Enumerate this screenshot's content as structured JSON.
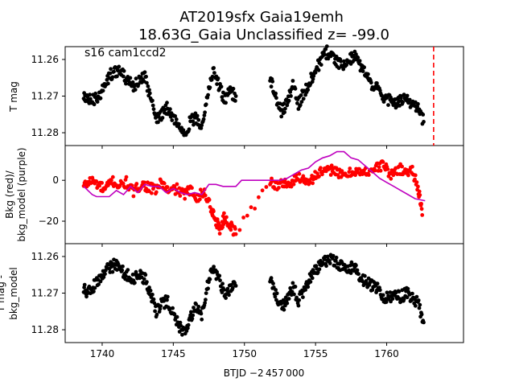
{
  "title_line1": "AT2019sfx  Gaia19emh",
  "title_line2": "18.63G_Gaia Unclassified z= -99.0",
  "annotation": "s16 cam1ccd2",
  "xlabel": "BTJD −2 457 000",
  "colors": {
    "data": "#000000",
    "bkg": "#ff0000",
    "bkg_model": "#bf00bf",
    "marker_line": "#ff0000"
  },
  "chart_data": [
    {
      "type": "scatter",
      "panel": "top",
      "ylabel": "T mag",
      "xlim": [
        1737.4,
        1765.4
      ],
      "ylim": [
        11.2835,
        11.2565
      ],
      "inverted_y": true,
      "xticks": [
        1740,
        1745,
        1750,
        1755,
        1760
      ],
      "yticks": [
        11.26,
        11.27,
        11.28
      ],
      "ytick_labels": [
        "11.26",
        "11.27",
        "11.28"
      ],
      "vline_x": 1763.3,
      "segments": [
        {
          "x": [
            1738.7,
            1739.0,
            1739.4,
            1739.8,
            1740.2,
            1740.6,
            1741.0,
            1741.4,
            1741.8,
            1742.2,
            1742.6,
            1743.0,
            1743.4,
            1743.8,
            1744.2,
            1744.6,
            1745.0,
            1745.4,
            1745.8,
            1746.2,
            1746.6,
            1747.0,
            1747.4,
            1747.8,
            1748.2,
            1748.6,
            1749.0,
            1749.4
          ],
          "y": [
            11.27,
            11.271,
            11.271,
            11.27,
            11.267,
            11.264,
            11.263,
            11.264,
            11.266,
            11.267,
            11.266,
            11.265,
            11.27,
            11.276,
            11.275,
            11.273,
            11.276,
            11.278,
            11.28,
            11.277,
            11.276,
            11.278,
            11.27,
            11.263,
            11.267,
            11.271,
            11.269,
            11.27
          ]
        },
        {
          "x": [
            1751.8,
            1752.2,
            1752.6,
            1753.0,
            1753.4,
            1753.8,
            1754.2,
            1754.6,
            1755.0,
            1755.4,
            1755.8,
            1756.2,
            1756.6,
            1757.0,
            1757.4,
            1757.8,
            1758.2,
            1758.6,
            1759.0,
            1759.4,
            1759.8,
            1760.2,
            1760.6,
            1761.0,
            1761.4,
            1761.8,
            1762.2,
            1762.6
          ],
          "y": [
            11.265,
            11.27,
            11.274,
            11.272,
            11.267,
            11.272,
            11.269,
            11.266,
            11.263,
            11.26,
            11.258,
            11.259,
            11.261,
            11.262,
            11.26,
            11.259,
            11.262,
            11.264,
            11.268,
            11.267,
            11.271,
            11.271,
            11.272,
            11.271,
            11.27,
            11.273,
            11.273,
            11.277
          ]
        }
      ]
    },
    {
      "type": "scatter",
      "panel": "middle",
      "ylabel": "Bkg (red)/ bkg_model (purple)",
      "xlim": [
        1737.4,
        1765.4
      ],
      "ylim": [
        -31.0,
        17.0
      ],
      "xticks": [
        1740,
        1745,
        1750,
        1755,
        1760
      ],
      "yticks": [
        -20,
        0
      ],
      "ytick_labels": [
        "−20",
        "0"
      ],
      "series": [
        {
          "name": "Bkg",
          "x": [
            1738.7,
            1739.2,
            1739.7,
            1740.2,
            1740.7,
            1741.2,
            1741.7,
            1742.2,
            1742.7,
            1743.2,
            1743.7,
            1744.2,
            1744.7,
            1745.2,
            1745.7,
            1746.2,
            1746.7,
            1747.2,
            1747.7,
            1748.0,
            1748.3,
            1748.6,
            1749.0,
            1749.4,
            1751.8,
            1752.3,
            1752.8,
            1753.3,
            1753.8,
            1754.3,
            1754.8,
            1755.3,
            1755.8,
            1756.3,
            1756.8,
            1757.3,
            1757.8,
            1758.3,
            1758.8,
            1759.3,
            1759.8,
            1760.3,
            1760.8,
            1761.3,
            1761.8,
            1762.2,
            1762.5
          ],
          "y": [
            -3,
            0,
            -2,
            -5,
            0,
            -3,
            -1,
            -6,
            -2,
            -3,
            -5,
            -1,
            -6,
            -4,
            -7,
            -5,
            -8,
            -6,
            -14,
            -20,
            -24,
            -18,
            -22,
            -26,
            0,
            -3,
            -1,
            -2,
            2,
            0,
            1,
            4,
            4,
            6,
            2,
            3,
            5,
            3,
            5,
            6,
            8,
            2,
            6,
            4,
            5,
            -3,
            -17
          ]
        },
        {
          "name": "bkg_model",
          "x": [
            1738.7,
            1739.3,
            1739.6,
            1740.0,
            1740.5,
            1741.0,
            1741.5,
            1742.0,
            1742.5,
            1743.0,
            1743.5,
            1744.0,
            1744.5,
            1745.0,
            1745.5,
            1746.0,
            1746.5,
            1747.0,
            1747.5,
            1748.0,
            1748.5,
            1748.9,
            1749.4,
            1749.8,
            1750.3,
            1751.0,
            1751.8,
            1752.5,
            1753.0,
            1753.5,
            1754.0,
            1754.5,
            1755.0,
            1755.5,
            1756.0,
            1756.5,
            1757.0,
            1757.5,
            1758.0,
            1758.5,
            1759.0,
            1759.5,
            1760.0,
            1760.5,
            1761.0,
            1761.5,
            1762.0,
            1762.7
          ],
          "y": [
            -3,
            -7,
            -8,
            -8,
            -8,
            -5,
            -7,
            -3,
            -6,
            -2,
            -3,
            -3,
            -6,
            -4,
            -6,
            -7,
            -6,
            -7,
            -2,
            -2,
            -3,
            -3,
            -3,
            0,
            0,
            0,
            0,
            0,
            1,
            3,
            5,
            6,
            9,
            11,
            12,
            14,
            14,
            11,
            10,
            7,
            4,
            1,
            -1,
            -3,
            -5,
            -7,
            -9,
            -10
          ]
        }
      ]
    },
    {
      "type": "scatter",
      "panel": "bottom",
      "ylabel": "T mag - bkg_model",
      "xlim": [
        1737.4,
        1765.4
      ],
      "ylim": [
        11.2835,
        11.2565
      ],
      "inverted_y": true,
      "xticks": [
        1740,
        1745,
        1750,
        1755,
        1760
      ],
      "xtick_labels": [
        "1740",
        "1745",
        "1750",
        "1755",
        "1760"
      ],
      "yticks": [
        11.26,
        11.27,
        11.28
      ],
      "ytick_labels": [
        "11.26",
        "11.27",
        "11.28"
      ],
      "segments": [
        {
          "x": [
            1738.7,
            1739.0,
            1739.4,
            1739.8,
            1740.2,
            1740.6,
            1741.0,
            1741.4,
            1741.8,
            1742.2,
            1742.6,
            1743.0,
            1743.4,
            1743.8,
            1744.2,
            1744.6,
            1745.0,
            1745.4,
            1745.8,
            1746.2,
            1746.6,
            1747.0,
            1747.4,
            1747.8,
            1748.2,
            1748.6,
            1749.0,
            1749.4
          ],
          "y": [
            11.269,
            11.27,
            11.268,
            11.266,
            11.264,
            11.263,
            11.262,
            11.264,
            11.265,
            11.266,
            11.265,
            11.266,
            11.27,
            11.275,
            11.273,
            11.272,
            11.276,
            11.279,
            11.281,
            11.277,
            11.274,
            11.276,
            11.268,
            11.263,
            11.266,
            11.27,
            11.269,
            11.268
          ]
        },
        {
          "x": [
            1751.8,
            1752.2,
            1752.6,
            1753.0,
            1753.4,
            1753.8,
            1754.2,
            1754.6,
            1755.0,
            1755.4,
            1755.8,
            1756.2,
            1756.6,
            1757.0,
            1757.4,
            1757.8,
            1758.2,
            1758.6,
            1759.0,
            1759.4,
            1759.8,
            1760.2,
            1760.6,
            1761.0,
            1761.4,
            1761.8,
            1762.2,
            1762.6
          ],
          "y": [
            11.266,
            11.27,
            11.274,
            11.272,
            11.268,
            11.272,
            11.269,
            11.266,
            11.264,
            11.262,
            11.261,
            11.261,
            11.262,
            11.263,
            11.263,
            11.263,
            11.266,
            11.267,
            11.268,
            11.269,
            11.271,
            11.271,
            11.271,
            11.271,
            11.27,
            11.271,
            11.273,
            11.278
          ]
        }
      ]
    }
  ]
}
